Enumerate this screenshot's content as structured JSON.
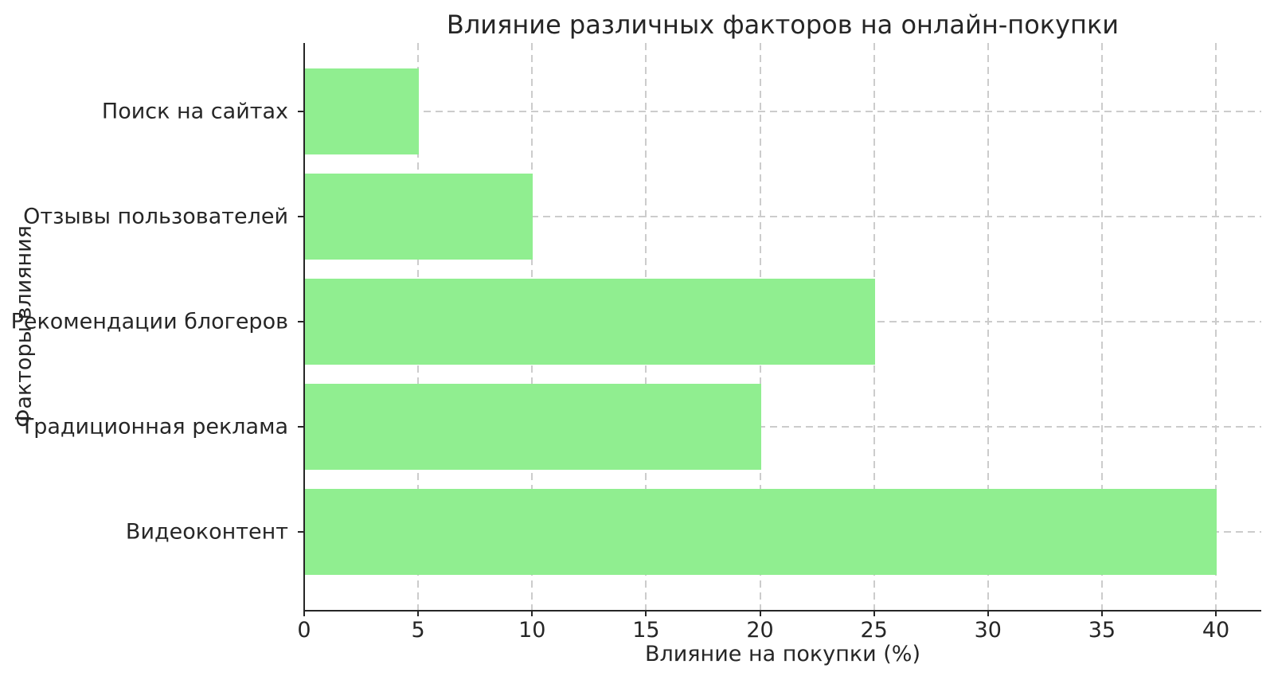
{
  "chart_data": {
    "type": "bar",
    "orientation": "horizontal",
    "title": "Влияние различных факторов на онлайн-покупки",
    "xlabel": "Влияние на покупки (%)",
    "ylabel": "Факторы влияния",
    "categories": [
      "Поиск на сайтах",
      "Отзывы пользователей",
      "Рекомендации блогеров",
      "Традиционная реклама",
      "Видеоконтент"
    ],
    "values": [
      5,
      10,
      25,
      20,
      40
    ],
    "xticks": [
      0,
      5,
      10,
      15,
      20,
      25,
      30,
      35,
      40
    ],
    "xlim": [
      0,
      42
    ],
    "grid": "dashed",
    "legend": "none",
    "bar_color": "#90EE90",
    "grid_color": "#cccccc",
    "axis_color": "#262626",
    "text_color": "#262626",
    "background_color": "#ffffff"
  }
}
